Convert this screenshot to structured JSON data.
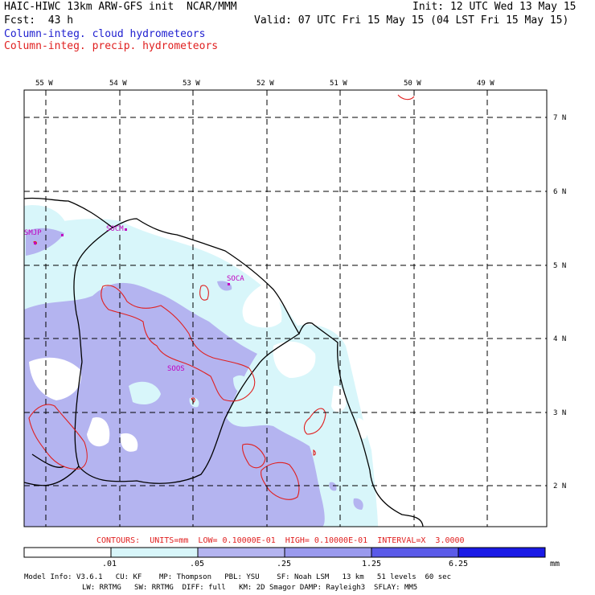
{
  "header": {
    "title_left": "HAIC-HIWC 13km ARW-GFS init  NCAR/MMM",
    "init": "Init: 12 UTC Wed 13 May 15",
    "fcst": "Fcst:  43 h",
    "valid": "Valid: 07 UTC Fri 15 May 15 (04 LST Fri 15 May 15)",
    "field_cloud": "Column-integ. cloud hydrometeors",
    "field_precip": "Column-integ. precip. hydrometeors"
  },
  "map": {
    "lon_labels": [
      "55 W",
      "54 W",
      "53 W",
      "52 W",
      "51 W",
      "50 W",
      "49 W"
    ],
    "lat_labels": [
      "7 N",
      "6 N",
      "5 N",
      "4 N",
      "3 N",
      "2 N"
    ],
    "stations": [
      "SMJP",
      "SOCM",
      "SOCA",
      "SOOS"
    ]
  },
  "contours_line": "CONTOURS:  UNITS=mm  LOW= 0.10000E-01  HIGH= 0.10000E-01  INTERVAL=X  3.0000",
  "colorbar": {
    "ticks": [
      ".01",
      ".05",
      ".25",
      "1.25",
      "6.25"
    ],
    "units": "mm",
    "colors": [
      "#ffffff",
      "#d8f6fa",
      "#b4b4f0",
      "#9a9aee",
      "#5a5ae8",
      "#1a1ae6"
    ]
  },
  "model_info": {
    "line1": "Model Info: V3.6.1   CU: KF    MP: Thompson   PBL: YSU    SF: Noah LSM   13 km   51 levels  60 sec",
    "line2": "LW: RRTMG   SW: RRTMG  DIFF: full   KM: 2D Smagor DAMP: Rayleigh3  SFLAY: MM5"
  },
  "colors": {
    "cloud_text": "#2020d0",
    "precip_text": "#e02020",
    "station": "#c000c0",
    "contour_text": "#e02020"
  }
}
